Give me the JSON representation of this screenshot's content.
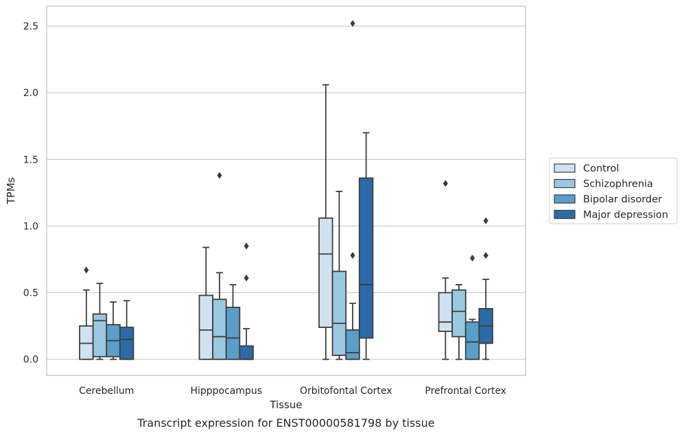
{
  "chart_data": {
    "type": "box",
    "xlabel": "Tissue",
    "ylabel": "TPMs",
    "caption": "Transcript expression for ENST00000581798 by tissue",
    "ylim": [
      -0.12,
      2.65
    ],
    "yticks": [
      "0.0",
      "0.5",
      "1.0",
      "1.5",
      "2.0",
      "2.5"
    ],
    "grid": "horizontal",
    "legend_position": "right",
    "categories": [
      "Cerebellum",
      "Hipppocampus",
      "Orbitofontal Cortex",
      "Prefrontal Cortex"
    ],
    "series": [
      {
        "name": "Control",
        "color": "#d0e1f2",
        "boxes": [
          {
            "whislo": 0.0,
            "q1": 0.0,
            "med": 0.12,
            "q3": 0.25,
            "whishi": 0.52,
            "fliers": [
              0.67
            ]
          },
          {
            "whislo": 0.0,
            "q1": 0.0,
            "med": 0.22,
            "q3": 0.48,
            "whishi": 0.84,
            "fliers": []
          },
          {
            "whislo": 0.0,
            "q1": 0.24,
            "med": 0.79,
            "q3": 1.06,
            "whishi": 2.06,
            "fliers": []
          },
          {
            "whislo": 0.0,
            "q1": 0.21,
            "med": 0.28,
            "q3": 0.5,
            "whishi": 0.61,
            "fliers": [
              1.32
            ]
          }
        ]
      },
      {
        "name": "Schizophrenia",
        "color": "#9ac8e0",
        "boxes": [
          {
            "whislo": 0.0,
            "q1": 0.02,
            "med": 0.29,
            "q3": 0.34,
            "whishi": 0.57,
            "fliers": []
          },
          {
            "whislo": 0.0,
            "q1": 0.0,
            "med": 0.17,
            "q3": 0.45,
            "whishi": 0.65,
            "fliers": [
              1.38
            ]
          },
          {
            "whislo": 0.0,
            "q1": 0.03,
            "med": 0.27,
            "q3": 0.66,
            "whishi": 1.26,
            "fliers": []
          },
          {
            "whislo": 0.0,
            "q1": 0.17,
            "med": 0.36,
            "q3": 0.52,
            "whishi": 0.56,
            "fliers": []
          }
        ]
      },
      {
        "name": "Bipolar disorder",
        "color": "#5a9ec9",
        "boxes": [
          {
            "whislo": 0.0,
            "q1": 0.02,
            "med": 0.14,
            "q3": 0.26,
            "whishi": 0.43,
            "fliers": []
          },
          {
            "whislo": 0.0,
            "q1": 0.0,
            "med": 0.16,
            "q3": 0.39,
            "whishi": 0.56,
            "fliers": []
          },
          {
            "whislo": 0.0,
            "q1": 0.0,
            "med": 0.05,
            "q3": 0.22,
            "whishi": 0.42,
            "fliers": [
              0.78,
              2.52
            ]
          },
          {
            "whislo": 0.0,
            "q1": 0.0,
            "med": 0.13,
            "q3": 0.28,
            "whishi": 0.3,
            "fliers": [
              0.76
            ]
          }
        ]
      },
      {
        "name": "Major depression",
        "color": "#2c6ba8",
        "boxes": [
          {
            "whislo": 0.0,
            "q1": 0.0,
            "med": 0.15,
            "q3": 0.24,
            "whishi": 0.44,
            "fliers": []
          },
          {
            "whislo": 0.0,
            "q1": 0.0,
            "med": 0.0,
            "q3": 0.1,
            "whishi": 0.23,
            "fliers": [
              0.61,
              0.85
            ]
          },
          {
            "whislo": 0.0,
            "q1": 0.16,
            "med": 0.56,
            "q3": 1.36,
            "whishi": 1.7,
            "fliers": []
          },
          {
            "whislo": 0.0,
            "q1": 0.12,
            "med": 0.25,
            "q3": 0.38,
            "whishi": 0.6,
            "fliers": [
              0.78,
              1.04
            ]
          }
        ]
      }
    ]
  }
}
